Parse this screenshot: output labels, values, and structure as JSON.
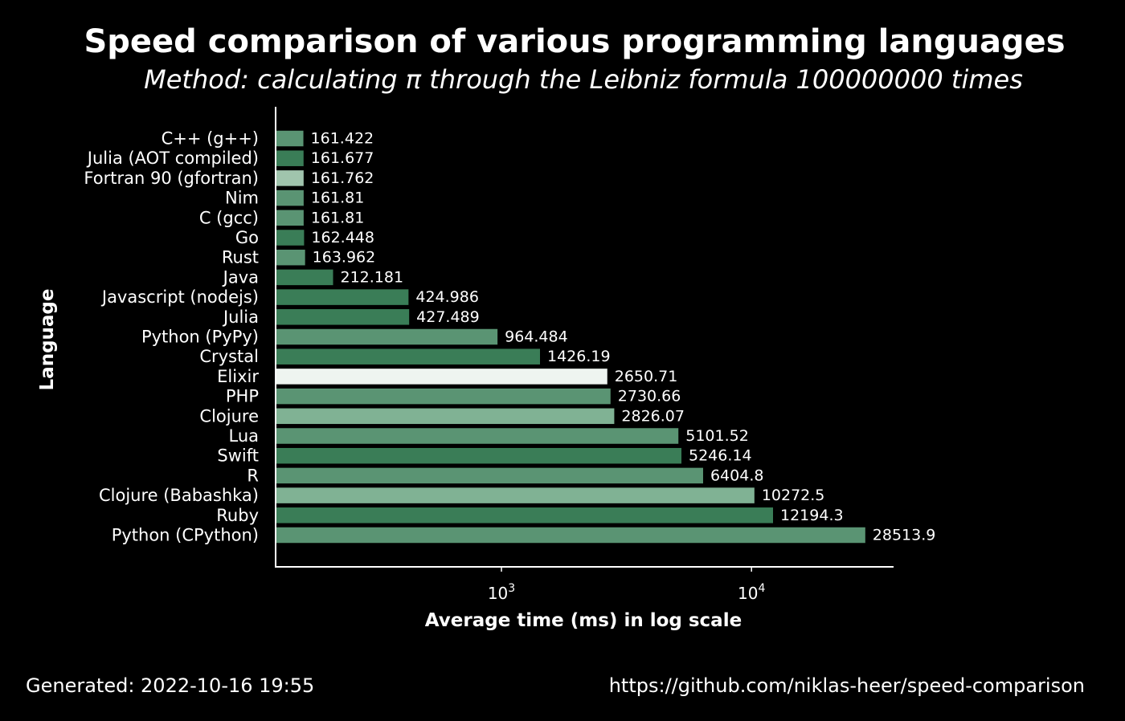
{
  "chart_data": {
    "type": "bar",
    "orientation": "horizontal",
    "title": "Speed comparison of various programming languages",
    "subtitle": "Method: calculating π through the Leibniz formula 100000000 times",
    "xlabel": "Average time (ms) in log scale",
    "ylabel": "Language",
    "xscale": "log",
    "xlim": [
      125,
      37000
    ],
    "xticks": [
      {
        "value": 1000,
        "base": "10",
        "exp": "3"
      },
      {
        "value": 10000,
        "base": "10",
        "exp": "4"
      }
    ],
    "grid": false,
    "legend": "none",
    "categories": [
      "C++ (g++)",
      "Julia (AOT compiled)",
      "Fortran 90 (gfortran)",
      "Nim",
      "C (gcc)",
      "Go",
      "Rust",
      "Java",
      "Javascript (nodejs)",
      "Julia",
      "Python (PyPy)",
      "Crystal",
      "Elixir",
      "PHP",
      "Clojure",
      "Lua",
      "Swift",
      "R",
      "Clojure (Babashka)",
      "Ruby",
      "Python (CPython)"
    ],
    "values": [
      161.422,
      161.677,
      161.762,
      161.81,
      161.81,
      162.448,
      163.962,
      212.181,
      424.986,
      427.489,
      964.484,
      1426.19,
      2650.71,
      2730.66,
      2826.07,
      5101.52,
      5246.14,
      6404.8,
      10272.5,
      12194.3,
      28513.9
    ],
    "value_labels": [
      "161.422",
      "161.677",
      "161.762",
      "161.81",
      "161.81",
      "162.448",
      "163.962",
      "212.181",
      "424.986",
      "427.489",
      "964.484",
      "1426.19",
      "2650.71",
      "2730.66",
      "2826.07",
      "5101.52",
      "5246.14",
      "6404.8",
      "10272.5",
      "12194.3",
      "28513.9"
    ],
    "colors": [
      "#5a9473",
      "#3a7d57",
      "#a0c4ad",
      "#5a9473",
      "#5a9473",
      "#3a7d57",
      "#5a9473",
      "#3a7d57",
      "#3a7d57",
      "#3a7d57",
      "#5a9473",
      "#3a7d57",
      "#eef4f0",
      "#5a9473",
      "#80b294",
      "#5a9473",
      "#3a7d57",
      "#5a9473",
      "#80b294",
      "#3a7d57",
      "#5a9473"
    ]
  },
  "footer": {
    "generated": "Generated: 2022-10-16 19:55",
    "url": "https://github.com/niklas-heer/speed-comparison"
  }
}
